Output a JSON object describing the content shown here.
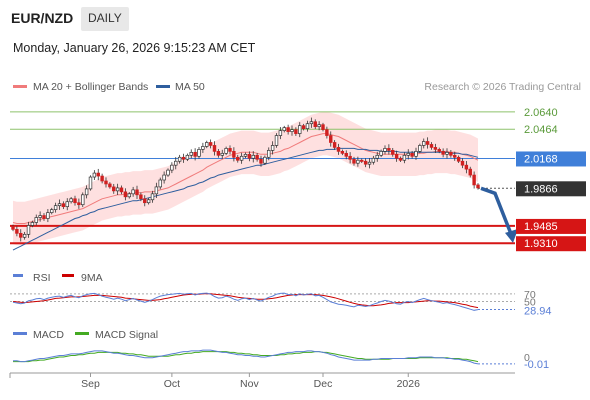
{
  "header": {
    "pair": "EUR/NZD",
    "timeframe": "DAILY",
    "timestamp": "Monday, January 26, 2026 9:15:23 AM CET"
  },
  "legend": {
    "ma20_label": "MA 20 + Bollinger Bands",
    "ma50_label": "MA 50",
    "credit": "Research © 2026 Trading Central",
    "ma20_color": "#f07b7b",
    "ma50_color": "#2e5e9e",
    "bands_color": "#fdd6d6"
  },
  "rsi_legend": {
    "rsi_label": "RSI",
    "ma_label": "9MA",
    "rsi_color": "#5b7fd6",
    "ma_color": "#cc0000"
  },
  "macd_legend": {
    "macd_label": "MACD",
    "signal_label": "MACD Signal",
    "macd_color": "#5b7fd6",
    "signal_color": "#44aa22"
  },
  "chart_data": [
    {
      "type": "candlestick",
      "title": "",
      "ylim": [
        1.914,
        2.076
      ],
      "x_ticks": [
        "Sep",
        "Oct",
        "Nov",
        "Dec",
        "2026"
      ],
      "levels": [
        {
          "label": "2.0640",
          "value": 2.064,
          "kind": "resistance",
          "color": "#8ec26b"
        },
        {
          "label": "2.0464",
          "value": 2.0464,
          "kind": "resistance",
          "color": "#8ec26b"
        },
        {
          "label": "2.0168",
          "value": 2.0168,
          "kind": "pivot",
          "color": "#3f7fd9"
        },
        {
          "label": "1.9866",
          "value": 1.9866,
          "kind": "last",
          "color": "#333333"
        },
        {
          "label": "1.9485",
          "value": 1.9485,
          "kind": "support",
          "color": "#d61515"
        },
        {
          "label": "1.9310",
          "value": 1.931,
          "kind": "support",
          "color": "#d61515"
        }
      ],
      "forecast": {
        "from": 1.9866,
        "to": 1.9485,
        "direction": "down"
      },
      "closes": [
        1.945,
        1.941,
        1.937,
        1.94,
        1.949,
        1.952,
        1.957,
        1.959,
        1.956,
        1.962,
        1.965,
        1.969,
        1.971,
        1.968,
        1.973,
        1.976,
        1.972,
        1.97,
        1.98,
        1.986,
        1.998,
        2.002,
        1.999,
        1.994,
        1.991,
        1.988,
        1.984,
        1.987,
        1.983,
        1.978,
        1.981,
        1.985,
        1.98,
        1.976,
        1.972,
        1.975,
        1.981,
        1.988,
        1.995,
        2.0,
        2.005,
        2.01,
        2.014,
        2.018,
        2.016,
        2.02,
        2.023,
        2.019,
        2.026,
        2.029,
        2.033,
        2.03,
        2.024,
        2.02,
        2.022,
        2.027,
        2.024,
        2.018,
        2.015,
        2.019,
        2.021,
        2.017,
        2.02,
        2.016,
        2.012,
        2.018,
        2.025,
        2.03,
        2.04,
        2.045,
        2.048,
        2.044,
        2.046,
        2.042,
        2.05,
        2.047,
        2.052,
        2.054,
        2.049,
        2.051,
        2.046,
        2.04,
        2.033,
        2.028,
        2.024,
        2.022,
        2.019,
        2.016,
        2.012,
        2.015,
        2.014,
        2.011,
        2.013,
        2.017,
        2.02,
        2.024,
        2.027,
        2.025,
        2.021,
        2.017,
        2.015,
        2.02,
        2.022,
        2.019,
        2.024,
        2.03,
        2.034,
        2.031,
        2.028,
        2.026,
        2.024,
        2.021,
        2.023,
        2.02,
        2.018,
        2.014,
        2.01,
        2.006,
        2.0,
        1.99,
        1.987
      ],
      "ma20": [
        1.952,
        1.951,
        1.951,
        1.951,
        1.952,
        1.953,
        1.954,
        1.955,
        1.956,
        1.957,
        1.958,
        1.959,
        1.96,
        1.961,
        1.962,
        1.963,
        1.964,
        1.965,
        1.966,
        1.968,
        1.97,
        1.972,
        1.974,
        1.976,
        1.977,
        1.978,
        1.979,
        1.98,
        1.98,
        1.981,
        1.981,
        1.982,
        1.982,
        1.982,
        1.983,
        1.983,
        1.983,
        1.984,
        1.985,
        1.986,
        1.987,
        1.989,
        1.991,
        1.993,
        1.995,
        1.997,
        1.999,
        2.001,
        2.003,
        2.005,
        2.008,
        2.01,
        2.012,
        2.014,
        2.016,
        2.018,
        2.02,
        2.021,
        2.022,
        2.023,
        2.023,
        2.023,
        2.023,
        2.022,
        2.021,
        2.021,
        2.021,
        2.022,
        2.023,
        2.024,
        2.026,
        2.027,
        2.029,
        2.031,
        2.033,
        2.035,
        2.037,
        2.039,
        2.04,
        2.041,
        2.042,
        2.042,
        2.041,
        2.04,
        2.039,
        2.037,
        2.035,
        2.033,
        2.031,
        2.029,
        2.027,
        2.025,
        2.024,
        2.023,
        2.022,
        2.021,
        2.021,
        2.021,
        2.021,
        2.021,
        2.021,
        2.021,
        2.021,
        2.021,
        2.021,
        2.022,
        2.022,
        2.023,
        2.023,
        2.024,
        2.024,
        2.024,
        2.024,
        2.023,
        2.023,
        2.022,
        2.021,
        2.02,
        2.019,
        2.017,
        2.015
      ],
      "ma50": [
        1.924,
        1.926,
        1.928,
        1.93,
        1.932,
        1.934,
        1.936,
        1.938,
        1.94,
        1.942,
        1.944,
        1.946,
        1.948,
        1.95,
        1.952,
        1.954,
        1.956,
        1.957,
        1.959,
        1.96,
        1.962,
        1.963,
        1.965,
        1.966,
        1.967,
        1.968,
        1.969,
        1.97,
        1.971,
        1.972,
        1.973,
        1.974,
        1.974,
        1.975,
        1.976,
        1.977,
        1.978,
        1.979,
        1.98,
        1.981,
        1.982,
        1.983,
        1.984,
        1.985,
        1.986,
        1.988,
        1.989,
        1.99,
        1.992,
        1.993,
        1.995,
        1.997,
        1.998,
        2.0,
        2.001,
        2.002,
        2.003,
        2.004,
        2.005,
        2.006,
        2.007,
        2.008,
        2.009,
        2.01,
        2.01,
        2.011,
        2.012,
        2.013,
        2.014,
        2.015,
        2.016,
        2.017,
        2.018,
        2.019,
        2.02,
        2.021,
        2.022,
        2.023,
        2.024,
        2.025,
        2.025,
        2.026,
        2.026,
        2.026,
        2.027,
        2.027,
        2.027,
        2.027,
        2.027,
        2.026,
        2.026,
        2.026,
        2.025,
        2.025,
        2.025,
        2.024,
        2.024,
        2.024,
        2.024,
        2.024,
        2.023,
        2.023,
        2.023,
        2.023,
        2.023,
        2.023,
        2.023,
        2.023,
        2.023,
        2.023,
        2.023,
        2.023,
        2.023,
        2.022,
        2.022,
        2.022,
        2.021,
        2.021,
        2.02,
        2.019,
        2.018
      ],
      "bb_width": 0.022
    },
    {
      "type": "line",
      "title": "RSI",
      "ylim": [
        20,
        80
      ],
      "levels": [
        {
          "label": "70",
          "value": 70
        },
        {
          "label": "50",
          "value": 50
        }
      ],
      "last_value_label": "28.94",
      "rsi": [
        48,
        46,
        44,
        46,
        52,
        54,
        57,
        58,
        55,
        59,
        61,
        63,
        64,
        61,
        64,
        66,
        62,
        60,
        65,
        68,
        70,
        71,
        68,
        64,
        61,
        59,
        56,
        59,
        56,
        52,
        55,
        58,
        54,
        51,
        48,
        51,
        55,
        60,
        64,
        66,
        68,
        69,
        70,
        71,
        69,
        70,
        71,
        67,
        70,
        71,
        72,
        69,
        63,
        59,
        60,
        64,
        61,
        56,
        53,
        57,
        59,
        55,
        58,
        54,
        51,
        56,
        61,
        64,
        69,
        71,
        72,
        68,
        69,
        65,
        70,
        67,
        69,
        70,
        65,
        66,
        61,
        55,
        49,
        46,
        43,
        42,
        40,
        38,
        36,
        40,
        39,
        37,
        39,
        43,
        46,
        50,
        53,
        51,
        48,
        44,
        43,
        48,
        50,
        47,
        51,
        55,
        58,
        55,
        52,
        50,
        48,
        45,
        47,
        44,
        42,
        39,
        36,
        33,
        30,
        27,
        29
      ],
      "ma9": [
        50,
        49,
        48,
        47,
        48,
        49,
        50,
        51,
        52,
        54,
        56,
        58,
        59,
        60,
        61,
        62,
        62,
        62,
        63,
        64,
        65,
        66,
        66,
        66,
        65,
        64,
        63,
        62,
        61,
        59,
        58,
        57,
        56,
        55,
        54,
        53,
        53,
        54,
        55,
        57,
        59,
        61,
        63,
        65,
        67,
        68,
        69,
        69,
        69,
        70,
        70,
        70,
        69,
        68,
        67,
        66,
        65,
        63,
        61,
        60,
        59,
        58,
        57,
        56,
        56,
        56,
        57,
        58,
        60,
        62,
        64,
        66,
        67,
        68,
        68,
        68,
        68,
        68,
        68,
        67,
        66,
        64,
        62,
        60,
        57,
        54,
        51,
        48,
        45,
        43,
        41,
        40,
        39,
        39,
        40,
        41,
        43,
        45,
        46,
        47,
        47,
        47,
        47,
        48,
        49,
        50,
        51,
        52,
        52,
        51,
        51,
        50,
        49,
        48,
        47,
        45,
        43,
        41,
        38,
        36,
        34
      ]
    },
    {
      "type": "line",
      "title": "MACD",
      "ylim": [
        -0.016,
        0.018
      ],
      "levels": [
        {
          "label": "0",
          "value": 0
        }
      ],
      "last_value_label": "-0.01",
      "macd": [
        -0.004,
        -0.004,
        -0.005,
        -0.005,
        -0.004,
        -0.003,
        -0.002,
        -0.001,
        -0.001,
        0.0,
        0.001,
        0.002,
        0.003,
        0.003,
        0.004,
        0.005,
        0.005,
        0.005,
        0.006,
        0.007,
        0.008,
        0.009,
        0.009,
        0.009,
        0.008,
        0.007,
        0.006,
        0.006,
        0.005,
        0.004,
        0.003,
        0.003,
        0.002,
        0.001,
        0.0,
        0.0,
        0.0,
        0.001,
        0.002,
        0.003,
        0.004,
        0.005,
        0.006,
        0.007,
        0.008,
        0.008,
        0.009,
        0.009,
        0.009,
        0.01,
        0.01,
        0.01,
        0.009,
        0.008,
        0.007,
        0.007,
        0.006,
        0.005,
        0.004,
        0.004,
        0.003,
        0.003,
        0.002,
        0.002,
        0.001,
        0.001,
        0.002,
        0.003,
        0.004,
        0.005,
        0.006,
        0.007,
        0.007,
        0.008,
        0.008,
        0.008,
        0.009,
        0.009,
        0.008,
        0.008,
        0.007,
        0.006,
        0.004,
        0.003,
        0.001,
        0.0,
        -0.001,
        -0.002,
        -0.003,
        -0.003,
        -0.003,
        -0.003,
        -0.003,
        -0.002,
        -0.002,
        -0.001,
        -0.001,
        -0.001,
        -0.001,
        -0.001,
        -0.001,
        -0.001,
        0.0,
        0.0,
        0.0,
        0.001,
        0.001,
        0.001,
        0.001,
        0.0,
        0.0,
        0.0,
        -0.001,
        -0.001,
        -0.002,
        -0.002,
        -0.003,
        -0.004,
        -0.005,
        -0.007,
        -0.008
      ],
      "signal": [
        -0.005,
        -0.005,
        -0.005,
        -0.005,
        -0.005,
        -0.004,
        -0.004,
        -0.003,
        -0.003,
        -0.002,
        -0.001,
        0.0,
        0.001,
        0.001,
        0.002,
        0.003,
        0.003,
        0.004,
        0.004,
        0.005,
        0.006,
        0.006,
        0.007,
        0.007,
        0.007,
        0.007,
        0.007,
        0.007,
        0.006,
        0.006,
        0.005,
        0.005,
        0.004,
        0.004,
        0.003,
        0.002,
        0.002,
        0.002,
        0.002,
        0.002,
        0.002,
        0.003,
        0.004,
        0.004,
        0.005,
        0.006,
        0.006,
        0.007,
        0.007,
        0.008,
        0.008,
        0.008,
        0.008,
        0.008,
        0.008,
        0.008,
        0.007,
        0.007,
        0.006,
        0.006,
        0.005,
        0.005,
        0.004,
        0.004,
        0.003,
        0.003,
        0.003,
        0.003,
        0.003,
        0.004,
        0.004,
        0.005,
        0.005,
        0.006,
        0.006,
        0.007,
        0.007,
        0.007,
        0.008,
        0.008,
        0.007,
        0.007,
        0.006,
        0.005,
        0.004,
        0.003,
        0.002,
        0.001,
        0.0,
        -0.001,
        -0.001,
        -0.002,
        -0.002,
        -0.002,
        -0.002,
        -0.002,
        -0.002,
        -0.002,
        -0.001,
        -0.001,
        -0.001,
        -0.001,
        -0.001,
        -0.001,
        -0.001,
        0.0,
        0.0,
        0.0,
        0.0,
        0.0,
        0.0,
        0.0,
        0.0,
        -0.001,
        -0.001,
        -0.001,
        -0.002,
        -0.002,
        -0.003,
        -0.004,
        -0.005
      ]
    }
  ]
}
